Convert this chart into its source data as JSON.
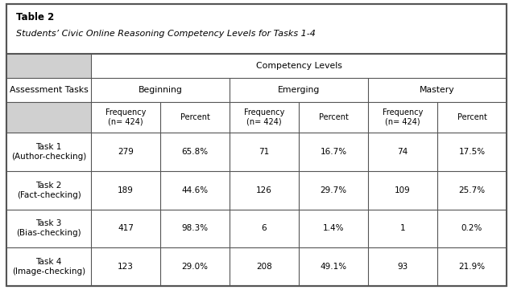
{
  "table_title": "Table 2",
  "table_subtitle": "Students’ Civic Online Reasoning Competency Levels for Tasks 1-4",
  "competency_levels_header": "Competency Levels",
  "col_groups": [
    "Beginning",
    "Emerging",
    "Mastery"
  ],
  "sub_headers": [
    "Frequency\n(n= 424)",
    "Percent",
    "Frequency\n(n= 424)",
    "Percent",
    "Frequency\n(n= 424)",
    "Percent"
  ],
  "assessment_tasks_label": "Assessment Tasks",
  "rows": [
    {
      "task": "Task 1\n(Author-checking)",
      "data": [
        "279",
        "65.8%",
        "71",
        "16.7%",
        "74",
        "17.5%"
      ]
    },
    {
      "task": "Task 2\n(Fact-checking)",
      "data": [
        "189",
        "44.6%",
        "126",
        "29.7%",
        "109",
        "25.7%"
      ]
    },
    {
      "task": "Task 3\n(Bias-checking)",
      "data": [
        "417",
        "98.3%",
        "6",
        "1.4%",
        "1",
        "0.2%"
      ]
    },
    {
      "task": "Task 4\n(Image-checking)",
      "data": [
        "123",
        "29.0%",
        "208",
        "49.1%",
        "93",
        "21.9%"
      ]
    }
  ],
  "bg_color": "#ffffff",
  "header_gray": "#d0d0d0",
  "border_color": "#555555",
  "text_color": "#000000",
  "outer_border_color": "#555555",
  "title_fontsize": 8.5,
  "subtitle_fontsize": 8.0,
  "header_fontsize": 7.8,
  "subheader_fontsize": 7.0,
  "data_fontsize": 7.5
}
